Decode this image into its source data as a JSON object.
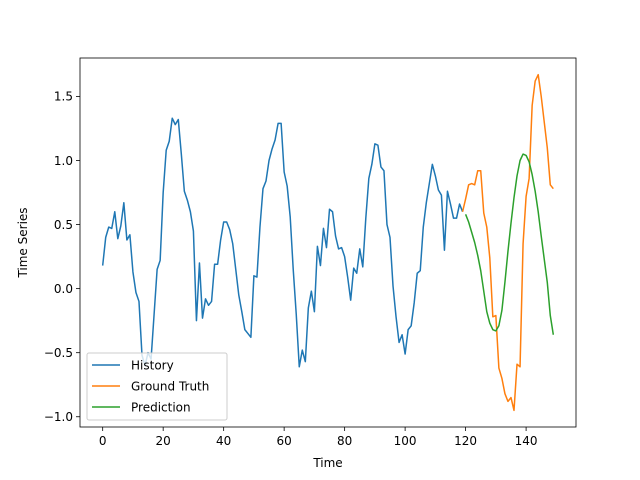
{
  "chart_data": {
    "type": "line",
    "xlabel": "Time",
    "ylabel": "Time Series",
    "xlim": [
      -7.5,
      156.5
    ],
    "ylim": [
      -1.08,
      1.8
    ],
    "xticks": [
      0,
      20,
      40,
      60,
      80,
      100,
      120,
      140
    ],
    "yticks": [
      -1.0,
      -0.5,
      0.0,
      0.5,
      1.0,
      1.5
    ],
    "ytick_labels": [
      "−1.0",
      "−0.5",
      "0.0",
      "0.5",
      "1.0",
      "1.5"
    ],
    "grid": false,
    "legend_position": "lower-left",
    "series": [
      {
        "name": "History",
        "color": "#1f77b4",
        "x_start": 0,
        "values": [
          0.18,
          0.4,
          0.48,
          0.47,
          0.6,
          0.39,
          0.49,
          0.67,
          0.38,
          0.42,
          0.13,
          -0.03,
          -0.1,
          -0.52,
          -0.6,
          -0.5,
          -0.55,
          -0.2,
          0.15,
          0.22,
          0.75,
          1.08,
          1.15,
          1.33,
          1.28,
          1.32,
          1.05,
          0.76,
          0.69,
          0.6,
          0.45,
          -0.25,
          0.2,
          -0.23,
          -0.08,
          -0.13,
          -0.1,
          0.19,
          0.19,
          0.38,
          0.52,
          0.52,
          0.46,
          0.35,
          0.15,
          -0.05,
          -0.18,
          -0.32,
          -0.35,
          -0.38,
          0.1,
          0.09,
          0.48,
          0.78,
          0.84,
          1.0,
          1.09,
          1.16,
          1.29,
          1.29,
          0.91,
          0.8,
          0.56,
          0.15,
          -0.2,
          -0.61,
          -0.48,
          -0.57,
          -0.15,
          -0.02,
          -0.18,
          0.33,
          0.18,
          0.47,
          0.32,
          0.62,
          0.6,
          0.41,
          0.31,
          0.32,
          0.25,
          0.09,
          -0.09,
          0.16,
          0.12,
          0.31,
          0.17,
          0.55,
          0.86,
          0.97,
          1.13,
          1.12,
          0.95,
          0.92,
          0.5,
          0.4,
          0.02,
          -0.22,
          -0.42,
          -0.36,
          -0.51,
          -0.32,
          -0.29,
          -0.11,
          0.12,
          0.14,
          0.48,
          0.67,
          0.82,
          0.97,
          0.88,
          0.77,
          0.73,
          0.3,
          0.76,
          0.66,
          0.55,
          0.55,
          0.66,
          0.6
        ]
      },
      {
        "name": "Ground Truth",
        "color": "#ff7f0e",
        "x_start": 119,
        "values": [
          0.6,
          0.7,
          0.81,
          0.82,
          0.81,
          0.92,
          0.92,
          0.59,
          0.48,
          0.24,
          -0.22,
          -0.21,
          -0.62,
          -0.7,
          -0.82,
          -0.88,
          -0.85,
          -0.95,
          -0.59,
          -0.61,
          0.35,
          0.72,
          0.86,
          1.43,
          1.62,
          1.67,
          1.5,
          1.3,
          1.1,
          0.81,
          0.78
        ]
      },
      {
        "name": "Prediction",
        "color": "#2ca02c",
        "x_start": 120,
        "values": [
          0.58,
          0.52,
          0.44,
          0.36,
          0.26,
          0.14,
          -0.02,
          -0.18,
          -0.27,
          -0.32,
          -0.33,
          -0.29,
          -0.17,
          0.05,
          0.29,
          0.51,
          0.71,
          0.88,
          1.0,
          1.05,
          1.04,
          0.99,
          0.89,
          0.76,
          0.6,
          0.41,
          0.23,
          0.05,
          -0.21,
          -0.36
        ]
      }
    ]
  }
}
